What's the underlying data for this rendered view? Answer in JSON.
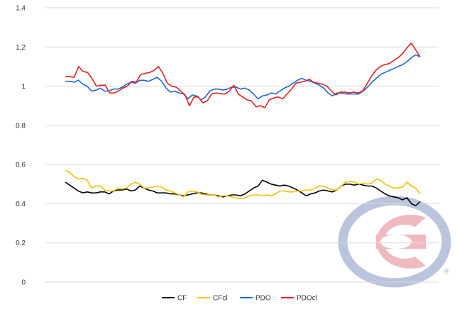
{
  "chart_data": {
    "type": "line",
    "title": "",
    "xlabel": "",
    "ylabel": "",
    "ylim": [
      0,
      1.4
    ],
    "y_ticks": [
      "0",
      "0.2",
      "0.4",
      "0.6",
      "0.8",
      "1",
      "1.2",
      "1.4"
    ],
    "grid": "horizontal",
    "legend_position": "bottom",
    "watermark": "montreal-canadiens-logo",
    "series": [
      {
        "name": "CF",
        "color": "#000000",
        "values": [
          0.51,
          0.495,
          0.48,
          0.465,
          0.455,
          0.46,
          0.455,
          0.455,
          0.46,
          0.46,
          0.45,
          0.465,
          0.47,
          0.47,
          0.475,
          0.465,
          0.47,
          0.49,
          0.48,
          0.47,
          0.465,
          0.455,
          0.455,
          0.455,
          0.45,
          0.45,
          0.445,
          0.44,
          0.445,
          0.45,
          0.455,
          0.455,
          0.45,
          0.445,
          0.445,
          0.44,
          0.435,
          0.44,
          0.445,
          0.445,
          0.44,
          0.45,
          0.465,
          0.48,
          0.49,
          0.52,
          0.51,
          0.5,
          0.495,
          0.49,
          0.495,
          0.49,
          0.48,
          0.47,
          0.455,
          0.44,
          0.45,
          0.455,
          0.465,
          0.47,
          0.465,
          0.46,
          0.47,
          0.49,
          0.5,
          0.5,
          0.495,
          0.5,
          0.495,
          0.49,
          0.49,
          0.48,
          0.465,
          0.45,
          0.44,
          0.435,
          0.43,
          0.42,
          0.43,
          0.4,
          0.39,
          0.41
        ]
      },
      {
        "name": "CFcl",
        "color": "#f5c000",
        "values": [
          0.57,
          0.56,
          0.54,
          0.525,
          0.53,
          0.52,
          0.48,
          0.49,
          0.49,
          0.47,
          0.465,
          0.465,
          0.48,
          0.475,
          0.48,
          0.5,
          0.51,
          0.5,
          0.48,
          0.48,
          0.485,
          0.49,
          0.485,
          0.47,
          0.465,
          0.455,
          0.445,
          0.435,
          0.46,
          0.465,
          0.46,
          0.45,
          0.445,
          0.445,
          0.445,
          0.435,
          0.44,
          0.44,
          0.435,
          0.43,
          0.425,
          0.43,
          0.44,
          0.445,
          0.445,
          0.44,
          0.445,
          0.44,
          0.45,
          0.465,
          0.465,
          0.46,
          0.46,
          0.465,
          0.465,
          0.47,
          0.47,
          0.48,
          0.49,
          0.49,
          0.48,
          0.47,
          0.47,
          0.49,
          0.51,
          0.515,
          0.51,
          0.5,
          0.505,
          0.5,
          0.505,
          0.525,
          0.52,
          0.5,
          0.49,
          0.48,
          0.48,
          0.485,
          0.51,
          0.49,
          0.48,
          0.45
        ]
      },
      {
        "name": "PDO",
        "color": "#1f63d6",
        "values": [
          1.025,
          1.025,
          1.02,
          1.03,
          1.01,
          1.0,
          0.975,
          0.98,
          0.99,
          0.975,
          0.975,
          0.985,
          0.985,
          0.995,
          1.01,
          1.02,
          1.015,
          1.03,
          1.03,
          1.025,
          1.035,
          1.045,
          1.025,
          0.99,
          0.97,
          0.975,
          0.965,
          0.96,
          0.935,
          0.955,
          0.95,
          0.93,
          0.945,
          0.975,
          0.985,
          0.985,
          0.98,
          0.985,
          0.995,
          0.995,
          0.985,
          0.99,
          0.98,
          0.96,
          0.935,
          0.95,
          0.955,
          0.965,
          0.96,
          0.975,
          0.99,
          1.0,
          1.015,
          1.03,
          1.04,
          1.03,
          1.025,
          1.015,
          1.005,
          0.99,
          0.965,
          0.95,
          0.965,
          0.965,
          0.96,
          0.96,
          0.96,
          0.96,
          0.975,
          0.995,
          1.02,
          1.04,
          1.06,
          1.07,
          1.08,
          1.09,
          1.1,
          1.11,
          1.125,
          1.145,
          1.16,
          1.15
        ]
      },
      {
        "name": "PDOcl",
        "color": "#e32020",
        "values": [
          1.05,
          1.048,
          1.045,
          1.1,
          1.075,
          1.07,
          1.04,
          1.0,
          1.005,
          1.005,
          0.965,
          0.965,
          0.975,
          0.99,
          1.0,
          1.025,
          1.02,
          1.06,
          1.065,
          1.07,
          1.08,
          1.1,
          1.065,
          1.015,
          1.0,
          0.995,
          0.975,
          0.955,
          0.9,
          0.945,
          0.945,
          0.915,
          0.925,
          0.96,
          0.965,
          0.96,
          0.96,
          0.975,
          1.005,
          0.96,
          0.945,
          0.93,
          0.925,
          0.895,
          0.9,
          0.89,
          0.93,
          0.94,
          0.945,
          0.935,
          0.96,
          0.985,
          1.015,
          1.02,
          1.025,
          1.035,
          1.02,
          1.015,
          1.01,
          1.0,
          0.975,
          0.955,
          0.97,
          0.97,
          0.965,
          0.97,
          0.965,
          0.975,
          1.01,
          1.05,
          1.08,
          1.1,
          1.11,
          1.115,
          1.13,
          1.145,
          1.165,
          1.195,
          1.22,
          1.185,
          1.15
        ]
      }
    ]
  }
}
